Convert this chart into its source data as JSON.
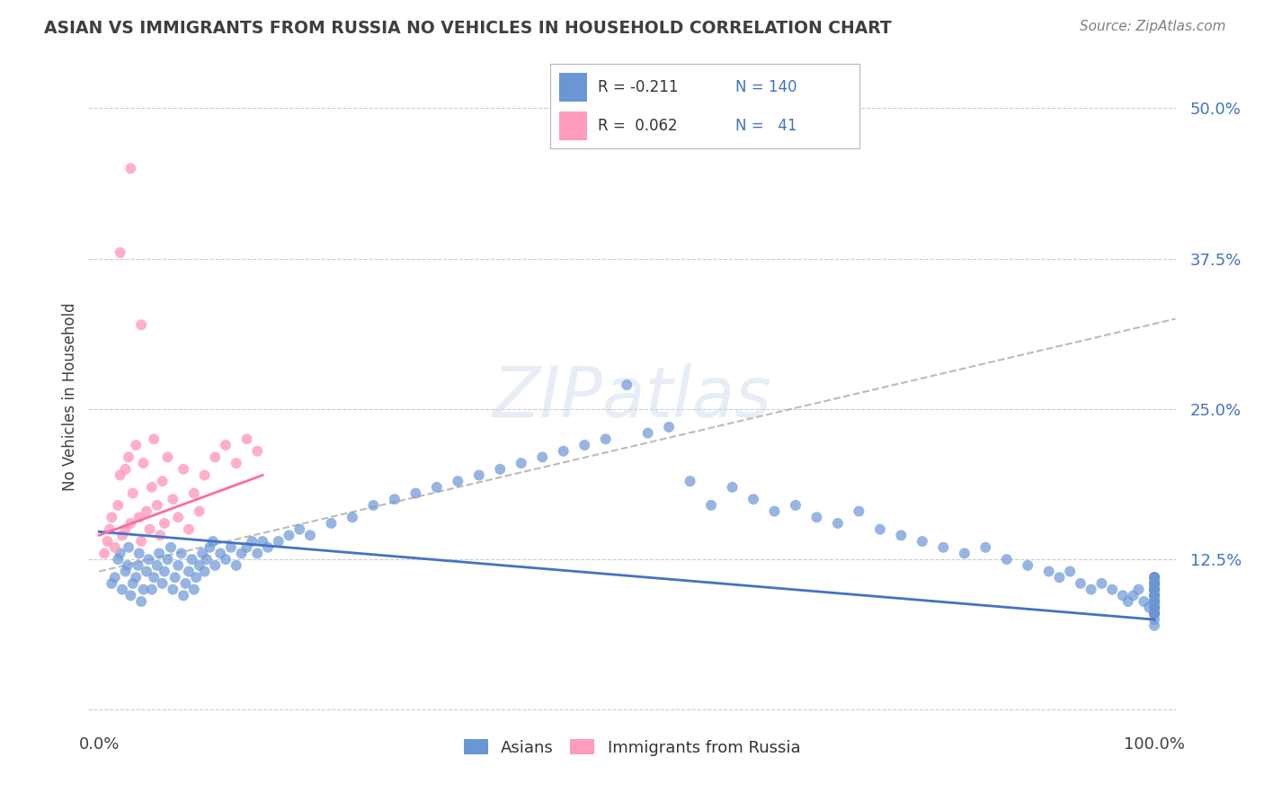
{
  "title": "ASIAN VS IMMIGRANTS FROM RUSSIA NO VEHICLES IN HOUSEHOLD CORRELATION CHART",
  "source": "Source: ZipAtlas.com",
  "ylabel": "No Vehicles in Household",
  "ytick_vals": [
    0,
    12.5,
    25.0,
    37.5,
    50.0
  ],
  "ytick_labels": [
    "",
    "12.5%",
    "25.0%",
    "37.5%",
    "50.0%"
  ],
  "xlim": [
    -1,
    102
  ],
  "ylim": [
    -1,
    53
  ],
  "watermark": "ZIPatlas",
  "blue_color": "#4472C4",
  "pink_color": "#FF6B9D",
  "blue_scatter": "#6B96D6",
  "pink_scatter": "#FF9BBD",
  "title_color": "#3F3F3F",
  "source_color": "#808080",
  "grid_color": "#CCCCCC",
  "background_color": "#FFFFFF",
  "asian_x": [
    1.2,
    1.5,
    1.8,
    2.0,
    2.2,
    2.5,
    2.7,
    2.8,
    3.0,
    3.2,
    3.5,
    3.7,
    3.8,
    4.0,
    4.2,
    4.5,
    4.7,
    5.0,
    5.2,
    5.5,
    5.7,
    6.0,
    6.2,
    6.5,
    6.8,
    7.0,
    7.2,
    7.5,
    7.8,
    8.0,
    8.2,
    8.5,
    8.8,
    9.0,
    9.2,
    9.5,
    9.8,
    10.0,
    10.2,
    10.5,
    10.8,
    11.0,
    11.5,
    12.0,
    12.5,
    13.0,
    13.5,
    14.0,
    14.5,
    15.0,
    15.5,
    16.0,
    17.0,
    18.0,
    19.0,
    20.0,
    22.0,
    24.0,
    26.0,
    28.0,
    30.0,
    32.0,
    34.0,
    36.0,
    38.0,
    40.0,
    42.0,
    44.0,
    46.0,
    48.0,
    50.0,
    52.0,
    54.0,
    56.0,
    58.0,
    60.0,
    62.0,
    64.0,
    66.0,
    68.0,
    70.0,
    72.0,
    74.0,
    76.0,
    78.0,
    80.0,
    82.0,
    84.0,
    86.0,
    88.0,
    90.0,
    91.0,
    92.0,
    93.0,
    94.0,
    95.0,
    96.0,
    97.0,
    97.5,
    98.0,
    98.5,
    99.0,
    99.5,
    100.0,
    100.0,
    100.0,
    100.0,
    100.0,
    100.0,
    100.0,
    100.0,
    100.0,
    100.0,
    100.0,
    100.0,
    100.0,
    100.0,
    100.0,
    100.0,
    100.0,
    100.0,
    100.0,
    100.0,
    100.0,
    100.0,
    100.0,
    100.0,
    100.0,
    100.0,
    100.0,
    100.0,
    100.0,
    100.0,
    100.0,
    100.0,
    100.0,
    100.0,
    100.0,
    100.0,
    100.0
  ],
  "asian_y": [
    10.5,
    11.0,
    12.5,
    13.0,
    10.0,
    11.5,
    12.0,
    13.5,
    9.5,
    10.5,
    11.0,
    12.0,
    13.0,
    9.0,
    10.0,
    11.5,
    12.5,
    10.0,
    11.0,
    12.0,
    13.0,
    10.5,
    11.5,
    12.5,
    13.5,
    10.0,
    11.0,
    12.0,
    13.0,
    9.5,
    10.5,
    11.5,
    12.5,
    10.0,
    11.0,
    12.0,
    13.0,
    11.5,
    12.5,
    13.5,
    14.0,
    12.0,
    13.0,
    12.5,
    13.5,
    12.0,
    13.0,
    13.5,
    14.0,
    13.0,
    14.0,
    13.5,
    14.0,
    14.5,
    15.0,
    14.5,
    15.5,
    16.0,
    17.0,
    17.5,
    18.0,
    18.5,
    19.0,
    19.5,
    20.0,
    20.5,
    21.0,
    21.5,
    22.0,
    22.5,
    27.0,
    23.0,
    23.5,
    19.0,
    17.0,
    18.5,
    17.5,
    16.5,
    17.0,
    16.0,
    15.5,
    16.5,
    15.0,
    14.5,
    14.0,
    13.5,
    13.0,
    13.5,
    12.5,
    12.0,
    11.5,
    11.0,
    11.5,
    10.5,
    10.0,
    10.5,
    10.0,
    9.5,
    9.0,
    9.5,
    10.0,
    9.0,
    8.5,
    8.0,
    9.0,
    10.0,
    11.0,
    10.5,
    9.5,
    8.5,
    9.0,
    10.0,
    11.0,
    10.5,
    9.5,
    8.0,
    9.0,
    10.0,
    11.0,
    10.5,
    9.0,
    8.5,
    10.0,
    11.0,
    9.5,
    8.5,
    10.0,
    10.5,
    9.0,
    8.0,
    9.5,
    10.5,
    11.0,
    9.0,
    8.5,
    7.5,
    9.0,
    10.0,
    8.0,
    7.0
  ],
  "russia_x": [
    0.5,
    0.8,
    1.0,
    1.2,
    1.5,
    1.8,
    2.0,
    2.2,
    2.5,
    2.5,
    2.8,
    3.0,
    3.2,
    3.5,
    3.8,
    4.0,
    4.2,
    4.5,
    4.8,
    5.0,
    5.2,
    5.5,
    5.8,
    6.0,
    6.2,
    6.5,
    7.0,
    7.5,
    8.0,
    8.5,
    9.0,
    9.5,
    10.0,
    11.0,
    12.0,
    13.0,
    14.0,
    15.0,
    4.0,
    2.0,
    3.0
  ],
  "russia_y": [
    13.0,
    14.0,
    15.0,
    16.0,
    13.5,
    17.0,
    19.5,
    14.5,
    20.0,
    15.0,
    21.0,
    15.5,
    18.0,
    22.0,
    16.0,
    14.0,
    20.5,
    16.5,
    15.0,
    18.5,
    22.5,
    17.0,
    14.5,
    19.0,
    15.5,
    21.0,
    17.5,
    16.0,
    20.0,
    15.0,
    18.0,
    16.5,
    19.5,
    21.0,
    22.0,
    20.5,
    22.5,
    21.5,
    32.0,
    38.0,
    45.0
  ],
  "russia_trend_x0": 0.0,
  "russia_trend_x1": 15.5,
  "russia_trend_y0": 14.5,
  "russia_trend_y1": 19.5,
  "asian_trend_x0": 0.0,
  "asian_trend_x1": 100.0,
  "asian_trend_y0": 14.8,
  "asian_trend_y1": 7.5,
  "dashed_x0": 0.0,
  "dashed_x1": 102.0,
  "dashed_y0": 11.5,
  "dashed_y1": 32.5
}
